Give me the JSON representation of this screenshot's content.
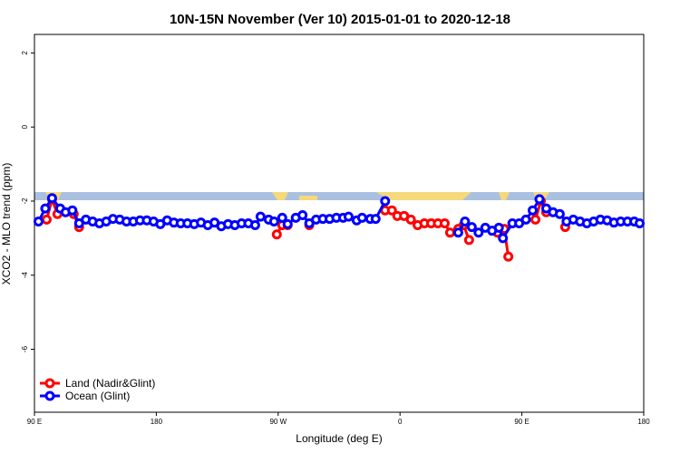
{
  "chart_data": {
    "type": "line",
    "title": "10N-15N November (Ver 10)   2015-01-01 to 2020-12-18",
    "x_label": "Longitude (deg E)",
    "y_label": "XCO2 - MLO trend (ppm)",
    "xlim": [
      90,
      540
    ],
    "ylim": [
      -7.7,
      2.5
    ],
    "xticks": [
      {
        "value": 90,
        "label": "90 E"
      },
      {
        "value": 180,
        "label": "180"
      },
      {
        "value": 270,
        "label": "90 W"
      },
      {
        "value": 360,
        "label": "0"
      },
      {
        "value": 450,
        "label": "90 E"
      },
      {
        "value": 540,
        "label": "180"
      }
    ],
    "yticks": [
      2,
      0,
      -2,
      -4,
      -6
    ],
    "grid": false,
    "legend": "bottom-left",
    "series": [
      {
        "name": "Land (Nadir&Glint)",
        "color": "#ff0000",
        "x": [
          99,
          103,
          107,
          null,
          119,
          123,
          null,
          269,
          273,
          277,
          null,
          293,
          null,
          349,
          354,
          358,
          363,
          368,
          373,
          378,
          383,
          388,
          393,
          397,
          403,
          407,
          411,
          null,
          432,
          437,
          440,
          null,
          460,
          464,
          468,
          null,
          482
        ],
        "values": [
          -2.5,
          -1.95,
          -2.35,
          null,
          -2.35,
          -2.7,
          null,
          -2.9,
          -2.65,
          -2.65,
          null,
          -2.65,
          null,
          -2.25,
          -2.25,
          -2.4,
          -2.4,
          -2.5,
          -2.65,
          -2.6,
          -2.6,
          -2.6,
          -2.6,
          -2.85,
          -2.75,
          -2.65,
          -3.05,
          null,
          -2.85,
          -2.75,
          -3.5,
          null,
          -2.5,
          -2.0,
          -2.3,
          null,
          -2.7
        ]
      },
      {
        "name": "Ocean (Glint)",
        "color": "#0000ff",
        "x": [
          93,
          98,
          103,
          109,
          113,
          118,
          123,
          128,
          133,
          138,
          143,
          148,
          153,
          158,
          163,
          168,
          173,
          178,
          183,
          188,
          193,
          198,
          203,
          208,
          213,
          218,
          223,
          228,
          233,
          238,
          243,
          248,
          253,
          257,
          263,
          267,
          273,
          277,
          283,
          288,
          293,
          298,
          303,
          308,
          313,
          318,
          322,
          328,
          332,
          338,
          342,
          349,
          null,
          403,
          408,
          413,
          418,
          423,
          428,
          433,
          436,
          443,
          448,
          453,
          458,
          463,
          468,
          473,
          478,
          483,
          488,
          493,
          498,
          503,
          508,
          513,
          518,
          523,
          528,
          533,
          537
        ],
        "values": [
          -2.55,
          -2.2,
          -1.92,
          -2.2,
          -2.3,
          -2.25,
          -2.6,
          -2.5,
          -2.55,
          -2.6,
          -2.55,
          -2.48,
          -2.5,
          -2.55,
          -2.55,
          -2.52,
          -2.52,
          -2.55,
          -2.62,
          -2.52,
          -2.58,
          -2.6,
          -2.6,
          -2.62,
          -2.58,
          -2.65,
          -2.58,
          -2.68,
          -2.62,
          -2.65,
          -2.6,
          -2.6,
          -2.65,
          -2.42,
          -2.5,
          -2.55,
          -2.45,
          -2.62,
          -2.45,
          -2.38,
          -2.6,
          -2.5,
          -2.48,
          -2.48,
          -2.45,
          -2.45,
          -2.42,
          -2.52,
          -2.45,
          -2.48,
          -2.48,
          -2.0,
          null,
          -2.85,
          -2.55,
          -2.7,
          -2.85,
          -2.72,
          -2.8,
          -2.72,
          -3.0,
          -2.6,
          -2.6,
          -2.5,
          -2.25,
          -1.95,
          -2.2,
          -2.3,
          -2.35,
          -2.55,
          -2.5,
          -2.55,
          -2.6,
          -2.55,
          -2.5,
          -2.52,
          -2.58,
          -2.55,
          -2.55,
          -2.55,
          -2.6
        ]
      }
    ]
  }
}
